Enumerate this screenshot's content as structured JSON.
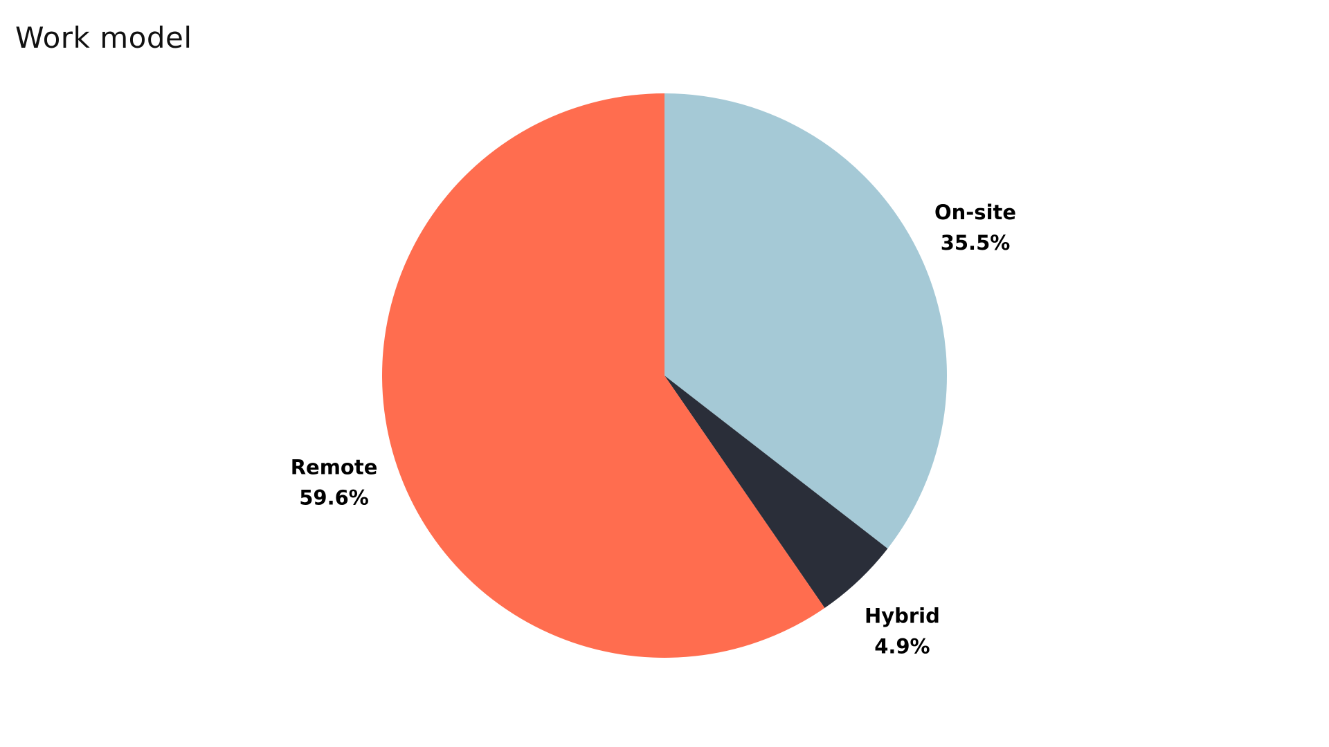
{
  "chart_data": {
    "type": "pie",
    "title": "Work model",
    "slices": [
      {
        "label": "On-site",
        "value": 35.5,
        "value_label": "35.5%",
        "color": "#a5c9d6"
      },
      {
        "label": "Hybrid",
        "value": 4.9,
        "value_label": "4.9%",
        "color": "#2a2e39"
      },
      {
        "label": "Remote",
        "value": 59.6,
        "value_label": "59.6%",
        "color": "#ff6d4f"
      }
    ],
    "start_angle": "top (12 o'clock)",
    "direction": "clockwise",
    "legend": "none",
    "labels": "outside slices, name above percentage"
  }
}
